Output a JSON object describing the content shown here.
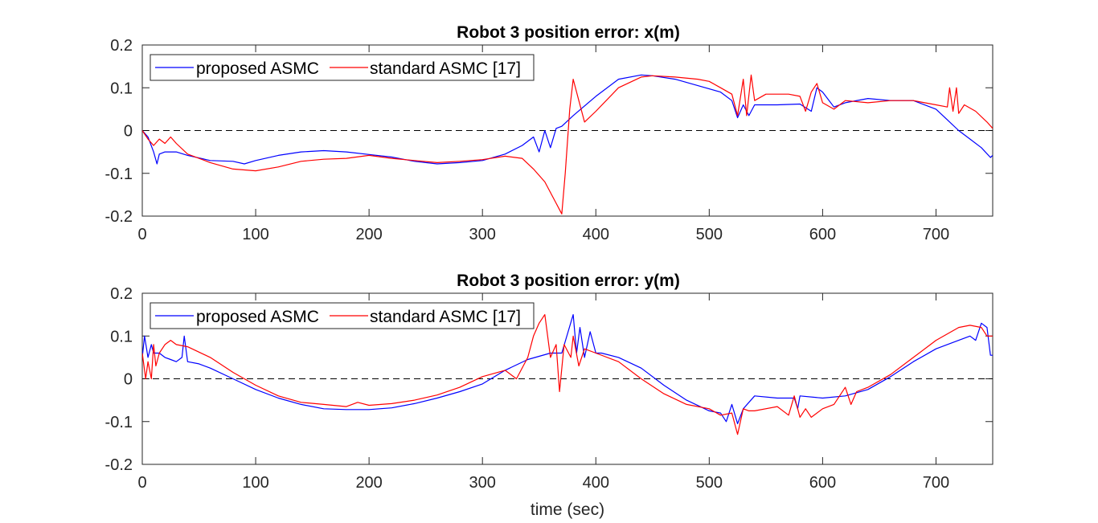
{
  "figure": {
    "xlabel": "time (sec)"
  },
  "chart_data": [
    {
      "type": "line",
      "title": "Robot 3 position error: x(m)",
      "xlabel": "",
      "ylabel": "",
      "xlim": [
        0,
        750
      ],
      "ylim": [
        -0.2,
        0.2
      ],
      "xticks": [
        0,
        100,
        200,
        300,
        400,
        500,
        600,
        700
      ],
      "yticks": [
        -0.2,
        -0.1,
        0,
        0.1,
        0.2
      ],
      "xtick_labels": [
        "0",
        "100",
        "200",
        "300",
        "400",
        "500",
        "600",
        "700"
      ],
      "ytick_labels": [
        "-0.2",
        "-0.1",
        "0",
        "0.1",
        "0.2"
      ],
      "grid": false,
      "legend_position": "top-left",
      "reference_line": {
        "y": 0,
        "style": "dashed"
      },
      "series": [
        {
          "name": "proposed ASMC",
          "color": "#0000ff",
          "x": [
            0,
            5,
            10,
            13,
            15,
            20,
            30,
            40,
            60,
            80,
            90,
            100,
            120,
            140,
            160,
            180,
            200,
            220,
            240,
            260,
            280,
            300,
            320,
            335,
            345,
            350,
            355,
            360,
            365,
            370,
            380,
            400,
            420,
            440,
            450,
            470,
            490,
            510,
            520,
            525,
            530,
            535,
            540,
            560,
            580,
            590,
            595,
            600,
            610,
            620,
            640,
            660,
            680,
            700,
            710,
            720,
            730,
            740,
            748,
            750
          ],
          "y": [
            0,
            -0.015,
            -0.05,
            -0.078,
            -0.055,
            -0.05,
            -0.05,
            -0.058,
            -0.07,
            -0.072,
            -0.078,
            -0.07,
            -0.058,
            -0.05,
            -0.047,
            -0.05,
            -0.056,
            -0.062,
            -0.072,
            -0.078,
            -0.075,
            -0.07,
            -0.055,
            -0.035,
            -0.015,
            -0.05,
            0.0,
            -0.04,
            0.005,
            0.01,
            0.035,
            0.08,
            0.12,
            0.13,
            0.128,
            0.12,
            0.105,
            0.09,
            0.07,
            0.03,
            0.06,
            0.035,
            0.06,
            0.06,
            0.062,
            0.045,
            0.1,
            0.09,
            0.055,
            0.065,
            0.075,
            0.07,
            0.07,
            0.05,
            0.025,
            0.0,
            -0.02,
            -0.04,
            -0.063,
            -0.058
          ]
        },
        {
          "name": "standard ASMC [17]",
          "color": "#ff0000",
          "x": [
            0,
            5,
            10,
            15,
            20,
            25,
            30,
            40,
            60,
            80,
            100,
            120,
            140,
            160,
            180,
            200,
            220,
            240,
            260,
            280,
            300,
            320,
            335,
            345,
            355,
            365,
            370,
            373,
            377,
            380,
            385,
            390,
            400,
            420,
            440,
            450,
            470,
            490,
            500,
            510,
            520,
            525,
            530,
            533,
            537,
            540,
            550,
            570,
            580,
            585,
            590,
            595,
            600,
            610,
            620,
            640,
            660,
            680,
            700,
            710,
            712,
            715,
            718,
            720,
            725,
            735,
            745,
            750
          ],
          "y": [
            0,
            -0.02,
            -0.035,
            -0.02,
            -0.03,
            -0.015,
            -0.03,
            -0.055,
            -0.075,
            -0.09,
            -0.094,
            -0.085,
            -0.072,
            -0.067,
            -0.065,
            -0.058,
            -0.065,
            -0.07,
            -0.075,
            -0.072,
            -0.068,
            -0.06,
            -0.065,
            -0.09,
            -0.12,
            -0.17,
            -0.195,
            -0.1,
            0.05,
            0.12,
            0.07,
            0.02,
            0.045,
            0.1,
            0.125,
            0.128,
            0.125,
            0.12,
            0.115,
            0.1,
            0.085,
            0.035,
            0.12,
            0.035,
            0.13,
            0.07,
            0.085,
            0.085,
            0.08,
            0.045,
            0.09,
            0.11,
            0.065,
            0.05,
            0.07,
            0.065,
            0.07,
            0.07,
            0.06,
            0.055,
            0.1,
            0.045,
            0.1,
            0.04,
            0.06,
            0.045,
            0.02,
            0.005
          ]
        }
      ]
    },
    {
      "type": "line",
      "title": "Robot 3 position error: y(m)",
      "xlabel": "time (sec)",
      "ylabel": "",
      "xlim": [
        0,
        750
      ],
      "ylim": [
        -0.2,
        0.2
      ],
      "xticks": [
        0,
        100,
        200,
        300,
        400,
        500,
        600,
        700
      ],
      "yticks": [
        -0.2,
        -0.1,
        0,
        0.1,
        0.2
      ],
      "xtick_labels": [
        "0",
        "100",
        "200",
        "300",
        "400",
        "500",
        "600",
        "700"
      ],
      "ytick_labels": [
        "-0.2",
        "-0.1",
        "0",
        "0.1",
        "0.2"
      ],
      "grid": false,
      "legend_position": "top-left",
      "reference_line": {
        "y": 0,
        "style": "dashed"
      },
      "series": [
        {
          "name": "proposed ASMC",
          "color": "#0000ff",
          "x": [
            0,
            2,
            5,
            8,
            10,
            15,
            20,
            25,
            30,
            35,
            37,
            40,
            50,
            60,
            80,
            100,
            120,
            140,
            160,
            180,
            200,
            220,
            240,
            260,
            280,
            300,
            320,
            340,
            360,
            370,
            380,
            383,
            386,
            390,
            395,
            400,
            405,
            420,
            440,
            460,
            480,
            500,
            510,
            515,
            520,
            525,
            530,
            540,
            560,
            575,
            578,
            580,
            600,
            620,
            640,
            660,
            680,
            700,
            720,
            730,
            735,
            740,
            745,
            748,
            750
          ],
          "y": [
            0.05,
            0.1,
            0.05,
            0.08,
            0.06,
            0.06,
            0.05,
            0.045,
            0.04,
            0.05,
            0.1,
            0.04,
            0.035,
            0.025,
            0.0,
            -0.025,
            -0.045,
            -0.06,
            -0.07,
            -0.072,
            -0.072,
            -0.068,
            -0.058,
            -0.045,
            -0.03,
            -0.012,
            0.02,
            0.045,
            0.06,
            0.06,
            0.15,
            0.06,
            0.12,
            0.05,
            0.11,
            0.06,
            0.06,
            0.05,
            0.025,
            -0.015,
            -0.05,
            -0.075,
            -0.08,
            -0.1,
            -0.06,
            -0.105,
            -0.07,
            -0.04,
            -0.045,
            -0.045,
            -0.07,
            -0.04,
            -0.045,
            -0.04,
            -0.025,
            0.005,
            0.04,
            0.07,
            0.09,
            0.1,
            0.09,
            0.13,
            0.12,
            0.055,
            0.055
          ]
        },
        {
          "name": "standard ASMC [17]",
          "color": "#ff0000",
          "x": [
            0,
            3,
            5,
            8,
            10,
            12,
            15,
            20,
            25,
            30,
            40,
            60,
            80,
            100,
            120,
            140,
            160,
            180,
            190,
            200,
            220,
            240,
            260,
            280,
            300,
            320,
            330,
            340,
            345,
            350,
            355,
            360,
            365,
            368,
            372,
            378,
            380,
            385,
            390,
            400,
            420,
            440,
            460,
            480,
            500,
            510,
            520,
            525,
            530,
            535,
            540,
            560,
            570,
            575,
            580,
            585,
            590,
            600,
            610,
            620,
            625,
            630,
            640,
            660,
            680,
            700,
            720,
            730,
            740,
            745,
            750
          ],
          "y": [
            0.06,
            0.0,
            0.04,
            0.0,
            0.08,
            0.03,
            0.06,
            0.08,
            0.09,
            0.08,
            0.075,
            0.05,
            0.015,
            -0.015,
            -0.04,
            -0.055,
            -0.06,
            -0.065,
            -0.055,
            -0.062,
            -0.058,
            -0.05,
            -0.038,
            -0.02,
            0.005,
            0.02,
            0.0,
            0.05,
            0.1,
            0.13,
            0.15,
            0.05,
            0.08,
            -0.03,
            0.08,
            0.05,
            0.1,
            0.03,
            0.07,
            0.06,
            0.04,
            0.0,
            -0.035,
            -0.06,
            -0.07,
            -0.085,
            -0.08,
            -0.13,
            -0.07,
            -0.075,
            -0.075,
            -0.065,
            -0.085,
            -0.04,
            -0.09,
            -0.07,
            -0.09,
            -0.07,
            -0.06,
            -0.02,
            -0.06,
            -0.03,
            -0.02,
            0.01,
            0.05,
            0.09,
            0.12,
            0.125,
            0.12,
            0.1,
            0.1
          ]
        }
      ]
    }
  ]
}
